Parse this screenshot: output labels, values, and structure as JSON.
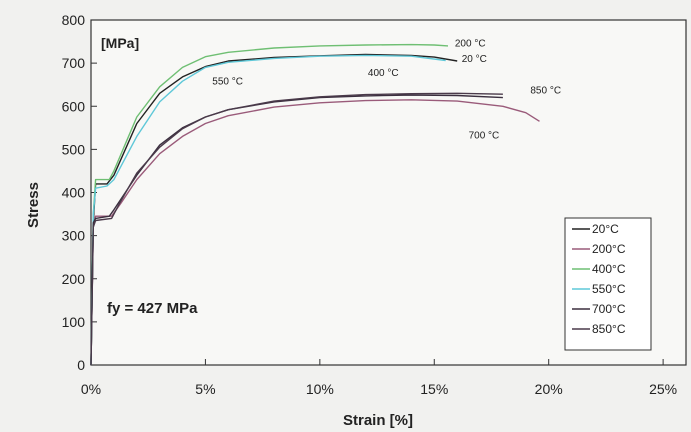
{
  "chart_data": {
    "type": "line",
    "xlabel": "Strain [%]",
    "ylabel": "Stress",
    "unit_label": "[MPa]",
    "annotation_fy": "fy = 427 MPa",
    "xlim": [
      0,
      26
    ],
    "ylim": [
      0,
      800
    ],
    "xticks": [
      0,
      5,
      10,
      15,
      20,
      25
    ],
    "xtick_labels": [
      "0%",
      "5%",
      "10%",
      "15%",
      "20%",
      "25%"
    ],
    "yticks": [
      0,
      100,
      200,
      300,
      400,
      500,
      600,
      700,
      800
    ],
    "ytick_labels": [
      "0",
      "100",
      "200",
      "300",
      "400",
      "500",
      "600",
      "700",
      "800"
    ],
    "grid": false,
    "legend_position": "bottom-right",
    "series": [
      {
        "name": "20°C",
        "color": "#222222",
        "points": [
          [
            0,
            0
          ],
          [
            0.1,
            330
          ],
          [
            0.2,
            420
          ],
          [
            0.7,
            420
          ],
          [
            1,
            440
          ],
          [
            2,
            560
          ],
          [
            3,
            630
          ],
          [
            4,
            668
          ],
          [
            5,
            692
          ],
          [
            6,
            705
          ],
          [
            8,
            713
          ],
          [
            10,
            717
          ],
          [
            12,
            720
          ],
          [
            14,
            718
          ],
          [
            15,
            714
          ],
          [
            16,
            705
          ]
        ]
      },
      {
        "name": "200°C",
        "color": "#9a5b7a",
        "points": [
          [
            0,
            0
          ],
          [
            0.1,
            320
          ],
          [
            0.2,
            345
          ],
          [
            0.9,
            345
          ],
          [
            1.3,
            375
          ],
          [
            2,
            430
          ],
          [
            3,
            490
          ],
          [
            4,
            530
          ],
          [
            5,
            560
          ],
          [
            6,
            578
          ],
          [
            8,
            598
          ],
          [
            10,
            608
          ],
          [
            12,
            613
          ],
          [
            14,
            615
          ],
          [
            16,
            612
          ],
          [
            18,
            600
          ],
          [
            19,
            585
          ],
          [
            19.6,
            565
          ]
        ]
      },
      {
        "name": "400°C",
        "color": "#6fbf73",
        "points": [
          [
            0,
            0
          ],
          [
            0.1,
            350
          ],
          [
            0.2,
            430
          ],
          [
            0.8,
            430
          ],
          [
            1,
            450
          ],
          [
            2,
            575
          ],
          [
            3,
            645
          ],
          [
            4,
            690
          ],
          [
            5,
            715
          ],
          [
            6,
            725
          ],
          [
            8,
            735
          ],
          [
            10,
            740
          ],
          [
            12,
            742
          ],
          [
            14,
            743
          ],
          [
            15,
            742
          ],
          [
            15.6,
            740
          ]
        ]
      },
      {
        "name": "550°C",
        "color": "#5fc8d8",
        "points": [
          [
            0,
            0
          ],
          [
            0.1,
            350
          ],
          [
            0.2,
            410
          ],
          [
            0.7,
            415
          ],
          [
            1,
            430
          ],
          [
            2,
            530
          ],
          [
            3,
            610
          ],
          [
            4,
            658
          ],
          [
            5,
            690
          ],
          [
            6,
            702
          ],
          [
            8,
            711
          ],
          [
            10,
            716
          ],
          [
            12,
            718
          ],
          [
            14,
            716
          ],
          [
            15.5,
            706
          ]
        ]
      },
      {
        "name": "700°C",
        "color": "#3b2f3f",
        "points": [
          [
            0,
            0
          ],
          [
            0.1,
            330
          ],
          [
            0.2,
            340
          ],
          [
            0.8,
            345
          ],
          [
            1,
            360
          ],
          [
            2,
            440
          ],
          [
            3,
            510
          ],
          [
            4,
            550
          ],
          [
            5,
            575
          ],
          [
            6,
            592
          ],
          [
            8,
            610
          ],
          [
            10,
            620
          ],
          [
            12,
            624
          ],
          [
            14,
            626
          ],
          [
            16,
            625
          ],
          [
            18,
            620
          ]
        ]
      },
      {
        "name": "850°C",
        "color": "#4a3a4a",
        "points": [
          [
            0,
            0
          ],
          [
            0.1,
            320
          ],
          [
            0.2,
            335
          ],
          [
            0.9,
            340
          ],
          [
            1.3,
            380
          ],
          [
            2,
            445
          ],
          [
            3,
            505
          ],
          [
            4,
            548
          ],
          [
            5,
            575
          ],
          [
            6,
            592
          ],
          [
            8,
            612
          ],
          [
            10,
            622
          ],
          [
            12,
            627
          ],
          [
            14,
            629
          ],
          [
            16,
            630
          ],
          [
            18,
            628
          ]
        ]
      }
    ],
    "curve_labels": [
      {
        "text": "200 °C",
        "x": 15.9,
        "y": 738
      },
      {
        "text": "20 °C",
        "x": 16.2,
        "y": 703
      },
      {
        "text": "400 °C",
        "x": 12.1,
        "y": 670
      },
      {
        "text": "550 °C",
        "x": 5.3,
        "y": 650
      },
      {
        "text": "850 °C",
        "x": 19.2,
        "y": 630
      },
      {
        "text": "700 °C",
        "x": 16.5,
        "y": 525
      }
    ]
  }
}
